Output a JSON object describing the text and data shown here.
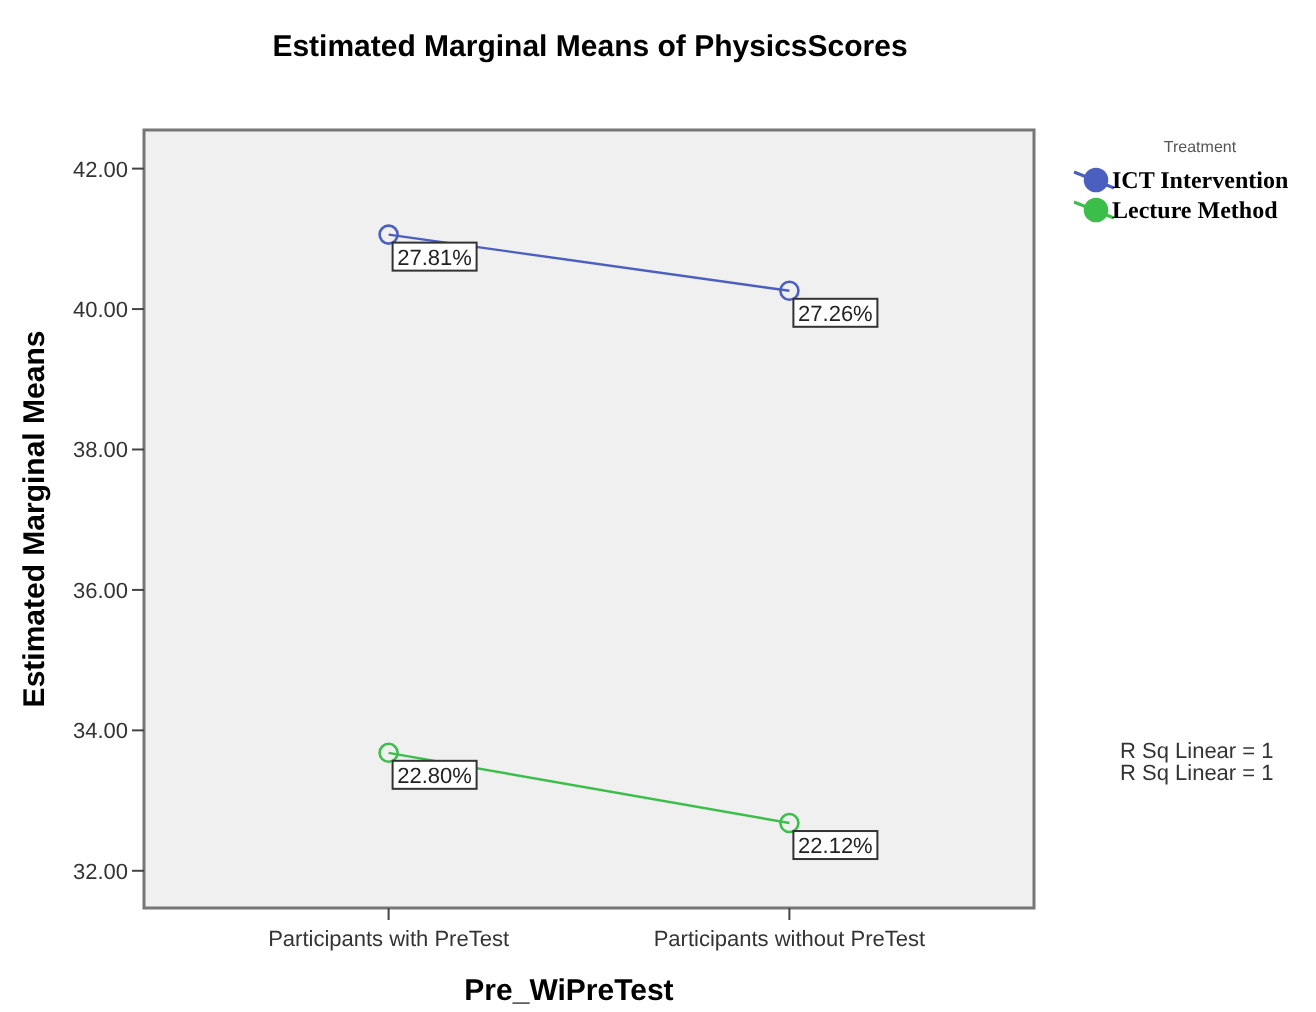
{
  "chart_data": {
    "type": "scatter",
    "title": "Estimated Marginal Means of PhysicsScores",
    "xlabel": "Pre_WiPreTest",
    "ylabel": "Estimated Marginal Means",
    "legend_title": "Treatment",
    "categories": [
      "Participants with PreTest",
      "Participants without PreTest"
    ],
    "ylim": [
      31.47,
      42.55
    ],
    "yticks": [
      {
        "value": 32,
        "label": "32.00"
      },
      {
        "value": 34,
        "label": "34.00"
      },
      {
        "value": 36,
        "label": "36.00"
      },
      {
        "value": 38,
        "label": "38.00"
      },
      {
        "value": 40,
        "label": "40.00"
      },
      {
        "value": 42,
        "label": "42.00"
      }
    ],
    "series": [
      {
        "name": "ICT Intervention",
        "color": "#4a5fbf",
        "values": [
          41.06,
          40.26
        ]
      },
      {
        "name": "Lecture Method",
        "color": "#3cbf4a",
        "values": [
          33.68,
          32.68
        ]
      },
      {
        "type": "line",
        "marker": "none",
        "color": "#4a5fbf",
        "values": [
          41.06,
          40.26
        ]
      },
      {
        "type": "line",
        "marker": "none",
        "color": "#3cbf4a",
        "values": [
          33.68,
          32.68
        ]
      }
    ],
    "annotations": [
      {
        "text": "27.81%",
        "x": "Participants with PreTest",
        "y": 41.06
      },
      {
        "text": "27.26%",
        "x": "Participants without PreTest",
        "y": 40.26
      },
      {
        "text": "22.80%",
        "x": "Participants with PreTest",
        "y": 33.68
      },
      {
        "text": "22.12%",
        "x": "Participants without PreTest",
        "y": 32.68
      },
      "R Sq Linear = 1",
      "R Sq Linear = 1"
    ],
    "marker": "circle",
    "line_style": "solid",
    "grid": false,
    "legend": "top right"
  }
}
